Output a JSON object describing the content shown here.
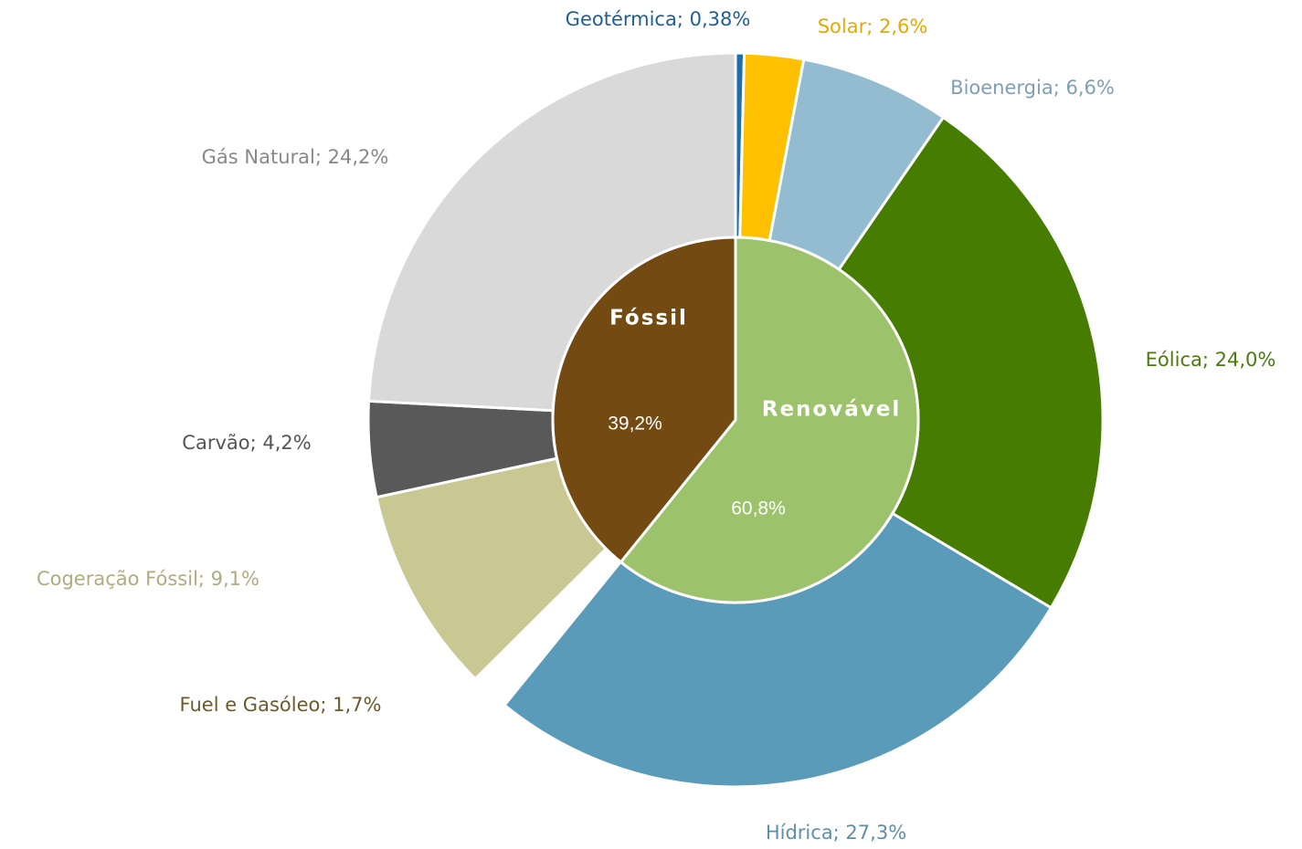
{
  "chart_data": {
    "type": "sunburst",
    "inner": {
      "categories": [
        "Renovável",
        "Fóssil"
      ],
      "values": [
        60.8,
        39.2
      ],
      "value_labels": [
        "60,8%",
        "39,2%"
      ],
      "colors": [
        "#9cc36b",
        "#734a12"
      ]
    },
    "outer": {
      "labels": [
        "Geotérmica; 0,38%",
        "Solar; 2,6%",
        "Bioenergia; 6,6%",
        "Eólica; 24,0%",
        "Hídrica; 27,3%",
        "Fuel e Gasóleo; 1,7%",
        "Cogeração Fóssil; 9,1%",
        "Carvão; 4,2%",
        "Gás Natural; 24,2%"
      ],
      "values": [
        0.38,
        2.6,
        6.6,
        24.0,
        27.3,
        1.7,
        9.1,
        4.2,
        24.2
      ],
      "colors": [
        "#1f6fb0",
        "#ffc000",
        "#93bcd0",
        "#467d00",
        "#5b9bba",
        "#ffffff",
        "#c9c893",
        "#595959",
        "#d9d9d9"
      ],
      "label_colors": [
        "#1f5f99",
        "#e8a800",
        "#7f9fb3",
        "#4a7a10",
        "#5e8ea8",
        "#6b5a2b",
        "#b0ab80",
        "#555555",
        "#888888"
      ]
    }
  }
}
